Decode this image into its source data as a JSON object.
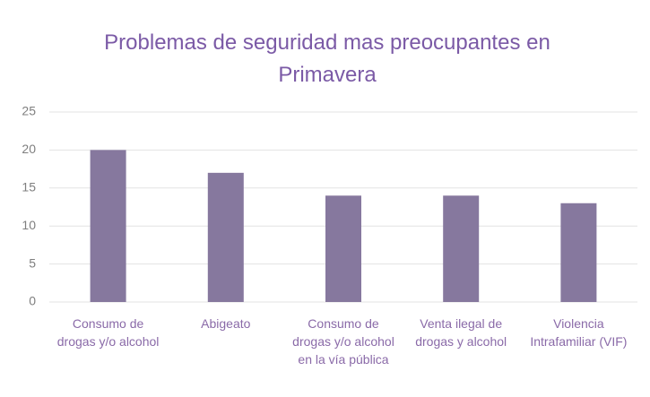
{
  "chart_data": {
    "type": "bar",
    "title": "Problemas de seguridad mas preocupantes en Primavera",
    "categories": [
      "Consumo de drogas y/o alcohol",
      "Abigeato",
      "Consumo de drogas y/o alcohol en la vía pública",
      "Venta ilegal de drogas y alcohol",
      "Violencia Intrafamiliar (VIF)"
    ],
    "values": [
      20,
      17,
      14,
      14,
      13
    ],
    "color": "#86789e",
    "ylim": [
      0,
      25
    ],
    "yticks": [
      0,
      5,
      10,
      15,
      20,
      25
    ],
    "grid": true
  }
}
